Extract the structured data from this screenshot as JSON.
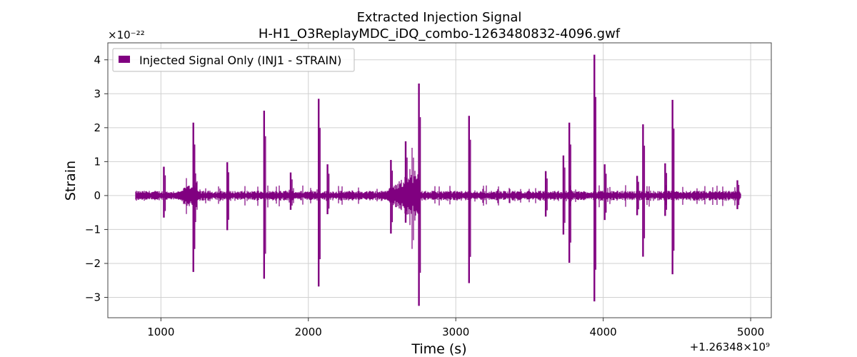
{
  "chart_data": {
    "type": "line",
    "title": "Extracted Injection Signal",
    "subtitle": "H-H1_O3ReplayMDC_iDQ_combo-1263480832-4096.gwf",
    "xlabel": "Time (s)",
    "ylabel": "Strain",
    "y_scale_label": "×10⁻²²",
    "x_offset_label": "+1.26348×10⁹",
    "xlim": [
      640,
      5140
    ],
    "ylim": [
      -3.6,
      4.5
    ],
    "x_ticks": [
      1000,
      2000,
      3000,
      4000,
      5000
    ],
    "y_ticks": [
      -3,
      -2,
      -1,
      0,
      1,
      2,
      3,
      4
    ],
    "x_tick_labels": [
      "1000",
      "2000",
      "3000",
      "4000",
      "5000"
    ],
    "y_tick_labels": [
      "−3",
      "−2",
      "−1",
      "0",
      "1",
      "2",
      "3",
      "4"
    ],
    "grid": true,
    "legend_position": "top-left",
    "series": [
      {
        "name": "Injected Signal Only (INJ1 - STRAIN)",
        "color": "#800080",
        "x_range": [
          832,
          4928
        ],
        "baseline_amplitude": 0.1,
        "spikes": [
          {
            "x": 1220,
            "y_max": 2.15,
            "y_min": -2.25
          },
          {
            "x": 1700,
            "y_max": 2.5,
            "y_min": -2.45
          },
          {
            "x": 2070,
            "y_max": 2.85,
            "y_min": -2.68
          },
          {
            "x": 2750,
            "y_max": 3.3,
            "y_min": -3.25
          },
          {
            "x": 3090,
            "y_max": 2.35,
            "y_min": -2.58
          },
          {
            "x": 3730,
            "y_max": 1.18,
            "y_min": -1.15
          },
          {
            "x": 3770,
            "y_max": 2.15,
            "y_min": -1.98
          },
          {
            "x": 3940,
            "y_max": 4.15,
            "y_min": -3.12
          },
          {
            "x": 4270,
            "y_max": 2.1,
            "y_min": -1.8
          },
          {
            "x": 4470,
            "y_max": 2.82,
            "y_min": -2.32
          },
          {
            "x": 1020,
            "y_max": 0.85,
            "y_min": -0.65
          },
          {
            "x": 1450,
            "y_max": 0.98,
            "y_min": -1.02
          },
          {
            "x": 1880,
            "y_max": 0.68,
            "y_min": -0.42
          },
          {
            "x": 2130,
            "y_max": 0.92,
            "y_min": -0.55
          },
          {
            "x": 2560,
            "y_max": 1.05,
            "y_min": -1.12
          },
          {
            "x": 2660,
            "y_max": 1.6,
            "y_min": -0.8
          },
          {
            "x": 3610,
            "y_max": 0.72,
            "y_min": -0.62
          },
          {
            "x": 4010,
            "y_max": 0.92,
            "y_min": -0.72
          },
          {
            "x": 4230,
            "y_max": 0.58,
            "y_min": -0.58
          },
          {
            "x": 4420,
            "y_max": 0.95,
            "y_min": -0.6
          },
          {
            "x": 4910,
            "y_max": 0.45,
            "y_min": -0.4
          }
        ],
        "bursts": [
          {
            "x_start": 2480,
            "x_end": 2760,
            "amplitude": 0.9
          },
          {
            "x_start": 1060,
            "x_end": 1250,
            "amplitude": 0.45
          }
        ]
      }
    ]
  }
}
